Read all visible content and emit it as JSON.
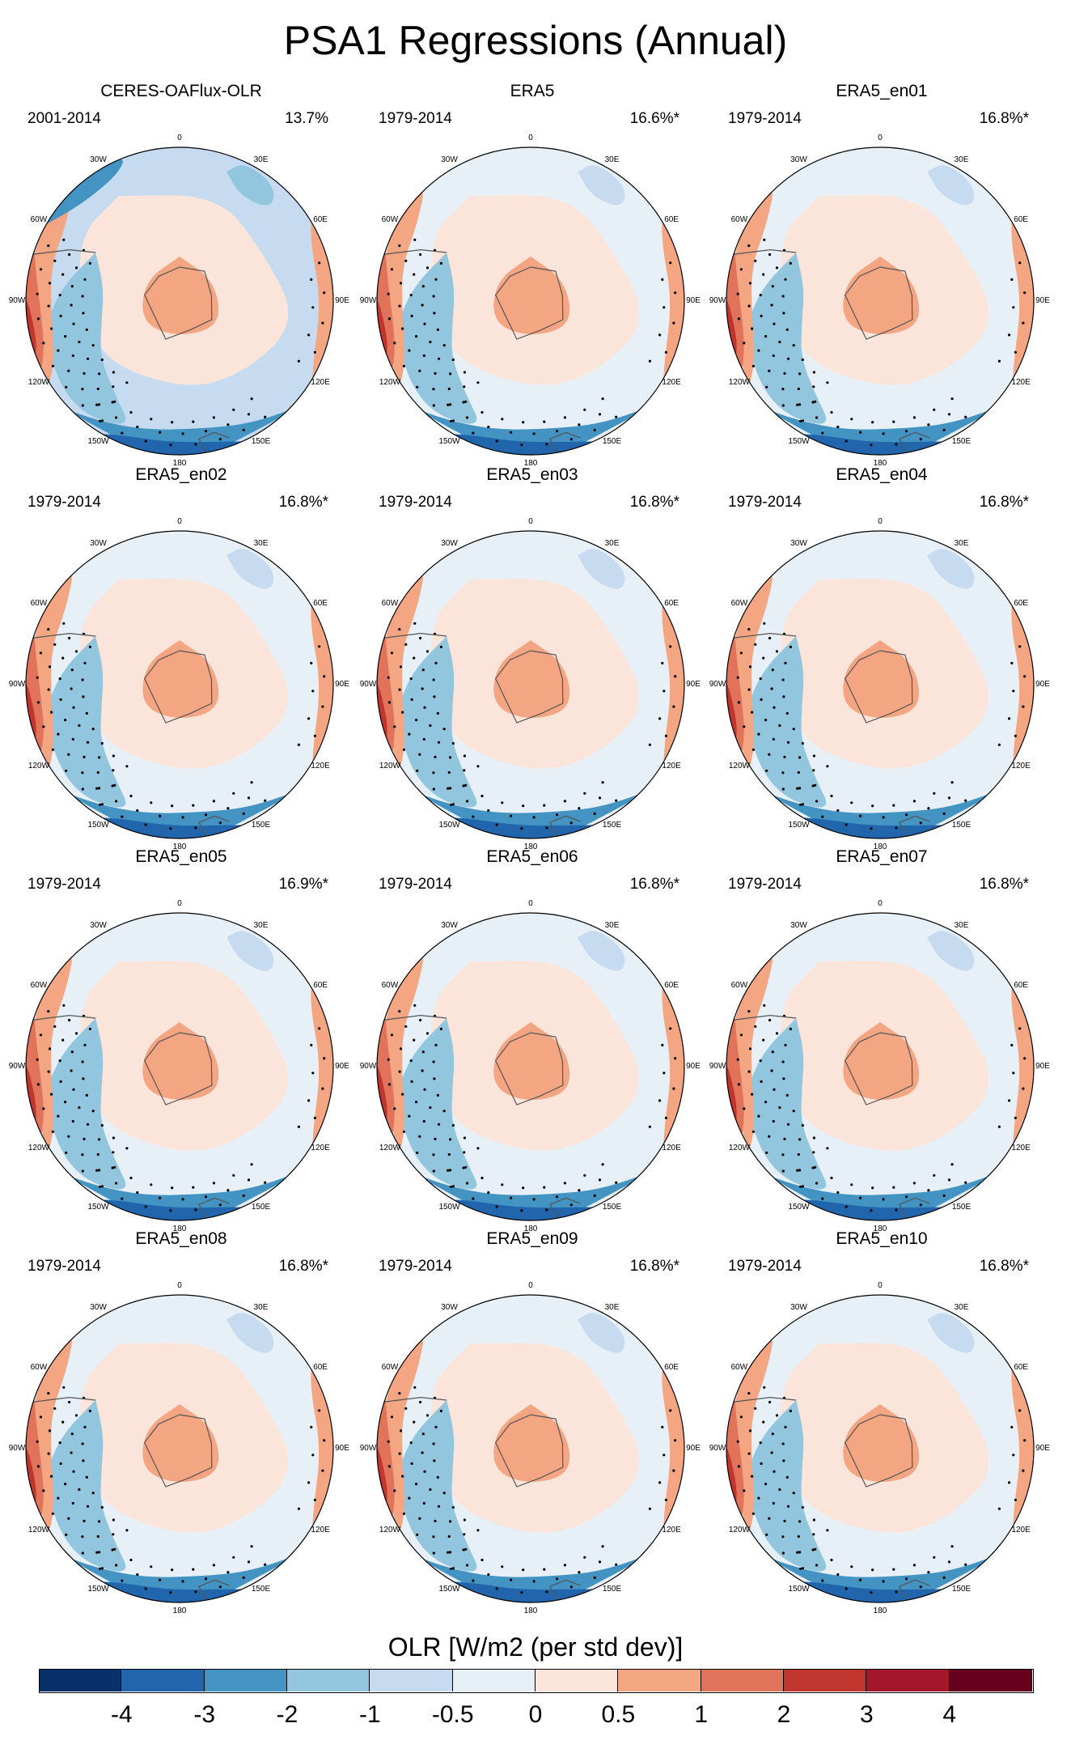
{
  "title": "PSA1 Regressions (Annual)",
  "lon_labels": [
    "0",
    "30E",
    "60E",
    "90E",
    "120E",
    "150E",
    "180",
    "150W",
    "120W",
    "90W",
    "60W",
    "30W"
  ],
  "panels": [
    {
      "name": "CERES-OAFlux-OLR",
      "period": "2001-2014",
      "pct": "13.7%"
    },
    {
      "name": "ERA5",
      "period": "1979-2014",
      "pct": "16.6%*"
    },
    {
      "name": "ERA5_en01",
      "period": "1979-2014",
      "pct": "16.8%*"
    },
    {
      "name": "ERA5_en02",
      "period": "1979-2014",
      "pct": "16.8%*"
    },
    {
      "name": "ERA5_en03",
      "period": "1979-2014",
      "pct": "16.8%*"
    },
    {
      "name": "ERA5_en04",
      "period": "1979-2014",
      "pct": "16.8%*"
    },
    {
      "name": "ERA5_en05",
      "period": "1979-2014",
      "pct": "16.9%*"
    },
    {
      "name": "ERA5_en06",
      "period": "1979-2014",
      "pct": "16.8%*"
    },
    {
      "name": "ERA5_en07",
      "period": "1979-2014",
      "pct": "16.8%*"
    },
    {
      "name": "ERA5_en08",
      "period": "1979-2014",
      "pct": "16.8%*"
    },
    {
      "name": "ERA5_en09",
      "period": "1979-2014",
      "pct": "16.8%*"
    },
    {
      "name": "ERA5_en10",
      "period": "1979-2014",
      "pct": "16.8%*"
    }
  ],
  "colorbar": {
    "title": "OLR [W/m2 (per std dev)]",
    "ticks": [
      "-4",
      "-3",
      "-2",
      "-1",
      "-0.5",
      "0",
      "0.5",
      "1",
      "2",
      "3",
      "4"
    ],
    "colors": [
      "#08306b",
      "#2166ac",
      "#4393c3",
      "#92c5de",
      "#c6dbef",
      "#e8f0f7",
      "#fbe5da",
      "#f4a582",
      "#e0735a",
      "#c0362f",
      "#a4162a",
      "#67001f"
    ]
  }
}
